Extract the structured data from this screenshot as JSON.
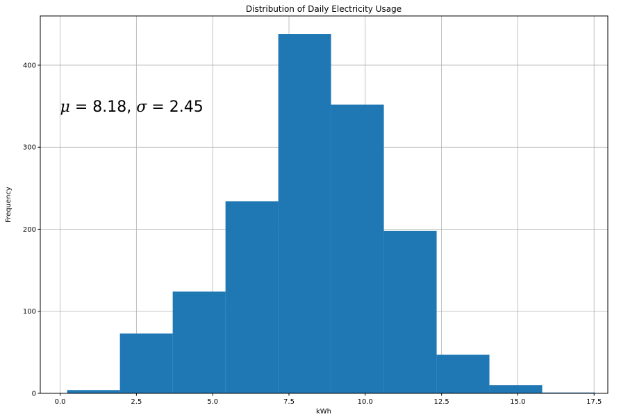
{
  "chart_data": {
    "type": "bar",
    "title": "Distribution of Daily Electricity Usage",
    "xlabel": "kWh",
    "ylabel": "Frequency",
    "xlim": [
      -0.65,
      17.95
    ],
    "ylim": [
      0,
      460
    ],
    "grid": true,
    "bar_color": "#1f77b4",
    "bin_edges": [
      0.23,
      1.96,
      3.69,
      5.42,
      7.15,
      8.88,
      10.61,
      12.34,
      14.07,
      15.8,
      17.53
    ],
    "values": [
      4,
      73,
      124,
      234,
      438,
      352,
      198,
      47,
      10,
      1
    ],
    "x_ticks": [
      0.0,
      2.5,
      5.0,
      7.5,
      10.0,
      12.5,
      15.0,
      17.5
    ],
    "x_tick_labels": [
      "0.0",
      "2.5",
      "5.0",
      "7.5",
      "10.0",
      "12.5",
      "15.0",
      "17.5"
    ],
    "y_ticks": [
      0,
      100,
      200,
      300,
      400
    ],
    "y_tick_labels": [
      "0",
      "100",
      "200",
      "300",
      "400"
    ],
    "annotation": {
      "x": 0.0,
      "y": 350,
      "mu_symbol": "μ",
      "mu_text": " = 8.18,  ",
      "sigma_symbol": "σ",
      "sigma_text": " = 2.45"
    }
  }
}
